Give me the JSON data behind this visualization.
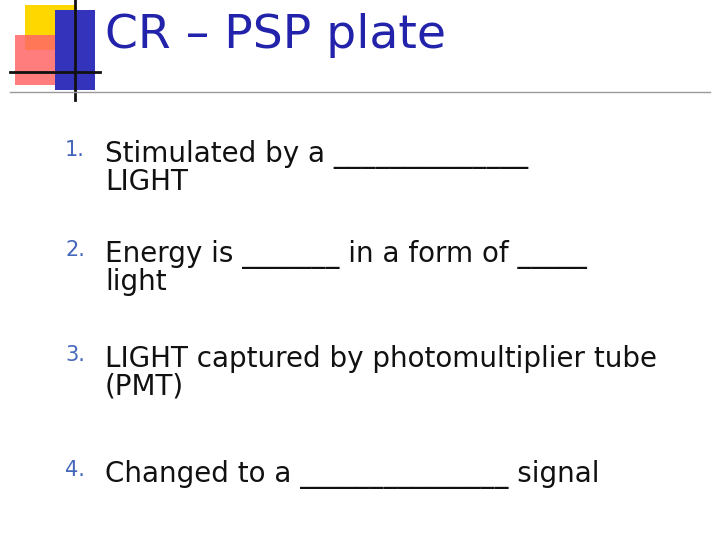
{
  "title": "CR – PSP plate",
  "title_color": "#2222AA",
  "title_fontsize": 34,
  "background_color": "#FFFFFF",
  "items": [
    {
      "num": "1.",
      "num_color": "#4466BB",
      "line1": "Stimulated by a ______________",
      "line2": "LIGHT",
      "fontsize": 20
    },
    {
      "num": "2.",
      "num_color": "#4466BB",
      "line1": "Energy is _______ in a form of _____",
      "line2": "light",
      "fontsize": 20
    },
    {
      "num": "3.",
      "num_color": "#4466BB",
      "line1": "LIGHT captured by photomultiplier tube",
      "line2": "(PMT)",
      "fontsize": 20
    },
    {
      "num": "4.",
      "num_color": "#4466BB",
      "line1": "Changed to a _______________ signal",
      "line2": "",
      "fontsize": 20
    }
  ],
  "line_color": "#999999",
  "logo_yellow": "#FFD700",
  "logo_red": "#FF6666",
  "logo_blue": "#3333BB",
  "logo_black": "#111111"
}
